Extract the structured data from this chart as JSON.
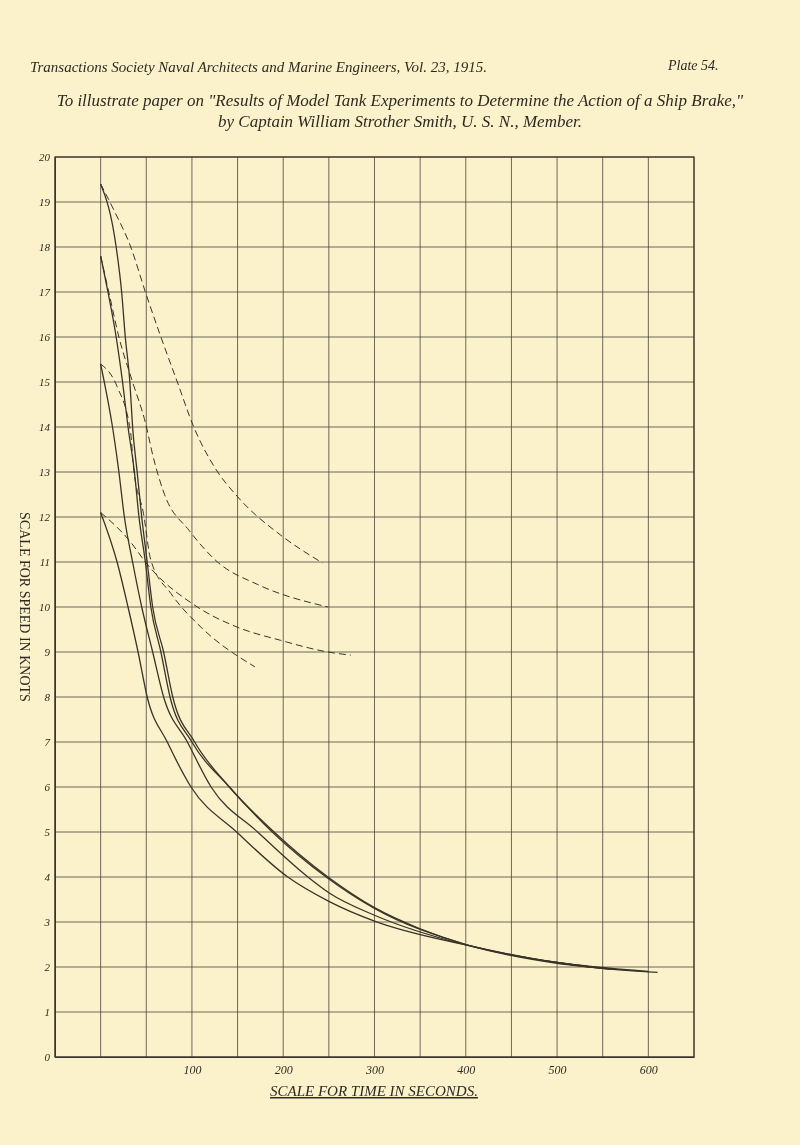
{
  "chart_data": {
    "type": "line",
    "title": "Transactions Society Naval Architects and Marine Engineers, Vol. 23, 1915.",
    "subtitle": "To illustrate paper on \"Results of Model Tank Experiments to Determine the Action of a Ship Brake,\" by Captain William Strother Smith, U. S. N., Member.",
    "annotations": [
      "Plate 54."
    ],
    "xlabel": "SCALE FOR TIME IN SECONDS.",
    "ylabel": "SCALE FOR SPEED IN KNOTS",
    "xlim": [
      -50,
      650
    ],
    "xticks": [
      {
        "value": -50,
        "label": null
      },
      {
        "value": 0,
        "label": null
      },
      {
        "value": 50,
        "label": null
      },
      100,
      {
        "value": 150,
        "label": null
      },
      200,
      {
        "value": 250,
        "label": null
      },
      300,
      {
        "value": 350,
        "label": null
      },
      400,
      {
        "value": 450,
        "label": null
      },
      500,
      {
        "value": 550,
        "label": null
      },
      600,
      {
        "value": 650,
        "label": null
      }
    ],
    "ylim": [
      0,
      20
    ],
    "yticks": [
      0,
      1,
      2,
      3,
      4,
      5,
      6,
      7,
      8,
      9,
      10,
      11,
      12,
      13,
      14,
      15,
      16,
      17,
      18,
      19,
      20
    ],
    "grid": true,
    "series": [
      {
        "color": "#3a3428",
        "line_style": "solid",
        "x": [
          0,
          17,
          23,
          27,
          32,
          35,
          40,
          45,
          51,
          57,
          69,
          79,
          103,
          141,
          190,
          249,
          300,
          350,
          400,
          450,
          500,
          550,
          610
        ],
        "values": [
          19.4,
          18,
          17,
          16,
          15,
          14,
          13,
          12,
          11,
          10,
          9,
          8,
          7,
          6,
          5,
          4,
          3.32,
          2.85,
          2.5,
          2.27,
          2.1,
          1.97,
          1.88
        ]
      },
      {
        "color": "#3a3428",
        "line_style": "solid",
        "x": [
          0,
          8,
          17,
          24,
          30,
          37,
          42,
          49,
          55,
          66,
          76,
          100,
          141,
          188,
          247,
          300,
          400,
          500,
          560
        ],
        "values": [
          17.8,
          17,
          16,
          15,
          14,
          13,
          12,
          11,
          10,
          9,
          8,
          7,
          6,
          5,
          4,
          3.3,
          2.5,
          2.08,
          1.95
        ]
      },
      {
        "color": "#3a3428",
        "line_style": "solid",
        "x": [
          0,
          4,
          13,
          20,
          26,
          35,
          45,
          57,
          69,
          95,
          121,
          172,
          227,
          250,
          300,
          400,
          500,
          600
        ],
        "values": [
          15.4,
          15,
          14,
          13,
          12,
          11,
          10,
          9,
          8,
          7,
          6,
          5,
          4,
          3.65,
          3.15,
          2.49,
          2.1,
          1.9
        ]
      },
      {
        "color": "#3a3428",
        "line_style": "solid",
        "x": [
          0,
          18,
          30,
          41,
          51,
          73,
          99,
          149,
          205,
          250,
          300,
          400,
          500,
          560
        ],
        "values": [
          12.1,
          11,
          10,
          9,
          8,
          7,
          6,
          5,
          4,
          3.46,
          3.02,
          2.49,
          2.1,
          1.95
        ]
      },
      {
        "color": "#3a3428",
        "line_style": "dashed",
        "x": [
          0,
          15,
          33,
          49,
          66,
          84,
          102,
          125,
          150,
          197,
          243
        ],
        "values": [
          19.4,
          18.8,
          18,
          17,
          16,
          15,
          14,
          13.1,
          12.45,
          11.6,
          10.98
        ]
      },
      {
        "color": "#3a3428",
        "line_style": "dashed",
        "x": [
          0,
          10,
          20,
          35,
          49,
          58,
          70,
          97,
          128,
          172,
          249
        ],
        "values": [
          17.8,
          16.9,
          16,
          15,
          14.1,
          13.3,
          12.5,
          11.7,
          11,
          10.5,
          10
        ]
      },
      {
        "color": "#3a3428",
        "line_style": "dashed",
        "x": [
          0,
          18,
          33,
          36,
          47,
          55,
          77,
          110,
          169
        ],
        "values": [
          15.4,
          14.9,
          13.85,
          13.1,
          12.07,
          11.04,
          10.3,
          9.55,
          8.67
        ]
      },
      {
        "color": "#3a3428",
        "line_style": "dashed",
        "x": [
          0,
          33,
          49,
          106,
          150,
          197,
          249,
          274
        ],
        "values": [
          12.1,
          11.44,
          11,
          10,
          9.55,
          9.26,
          9,
          8.93
        ]
      }
    ]
  }
}
